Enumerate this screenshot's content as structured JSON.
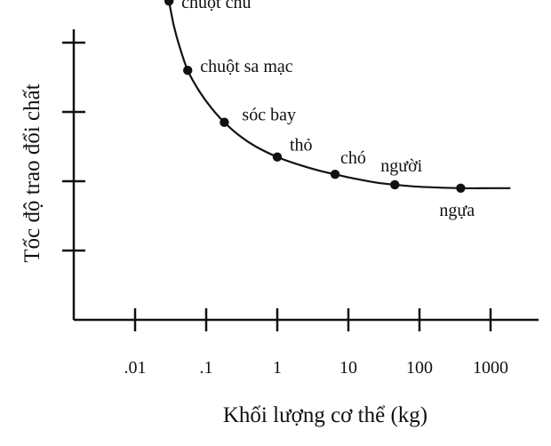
{
  "chart_data": {
    "type": "line",
    "title": "",
    "xlabel": "Khối lượng cơ thể (kg)",
    "ylabel": "Tốc độ trao đổi chất",
    "x_scale": "log",
    "x_ticks": [
      {
        "value": 0.01,
        "label": ".01"
      },
      {
        "value": 0.1,
        "label": ".1"
      },
      {
        "value": 1,
        "label": "1"
      },
      {
        "value": 10,
        "label": "10"
      },
      {
        "value": 100,
        "label": "100"
      },
      {
        "value": 1000,
        "label": "1000"
      }
    ],
    "y_tick_count": 4,
    "xlim": [
      0.0014,
      2000
    ],
    "ylim": [
      0,
      5
    ],
    "grid": false,
    "points": [
      {
        "name": "chuột chù",
        "x": 0.03,
        "y": 4.6
      },
      {
        "name": "chuột sa mạc",
        "x": 0.055,
        "y": 3.6
      },
      {
        "name": "sóc bay",
        "x": 0.18,
        "y": 2.85
      },
      {
        "name": "thỏ",
        "x": 1.0,
        "y": 2.35
      },
      {
        "name": "chó",
        "x": 6.5,
        "y": 2.1
      },
      {
        "name": "người",
        "x": 45,
        "y": 1.95
      },
      {
        "name": "ngựa",
        "x": 380,
        "y": 1.9
      }
    ],
    "curve": {
      "x": [
        0.026,
        0.028,
        0.03,
        0.035,
        0.042,
        0.055,
        0.08,
        0.12,
        0.18,
        0.3,
        0.5,
        1.0,
        2,
        4,
        6.5,
        12,
        25,
        45,
        100,
        380,
        1000,
        1900
      ],
      "y": [
        5.0,
        4.8,
        4.6,
        4.25,
        3.95,
        3.6,
        3.3,
        3.05,
        2.85,
        2.65,
        2.5,
        2.35,
        2.24,
        2.15,
        2.1,
        2.04,
        1.98,
        1.95,
        1.92,
        1.9,
        1.9,
        1.9
      ]
    }
  }
}
